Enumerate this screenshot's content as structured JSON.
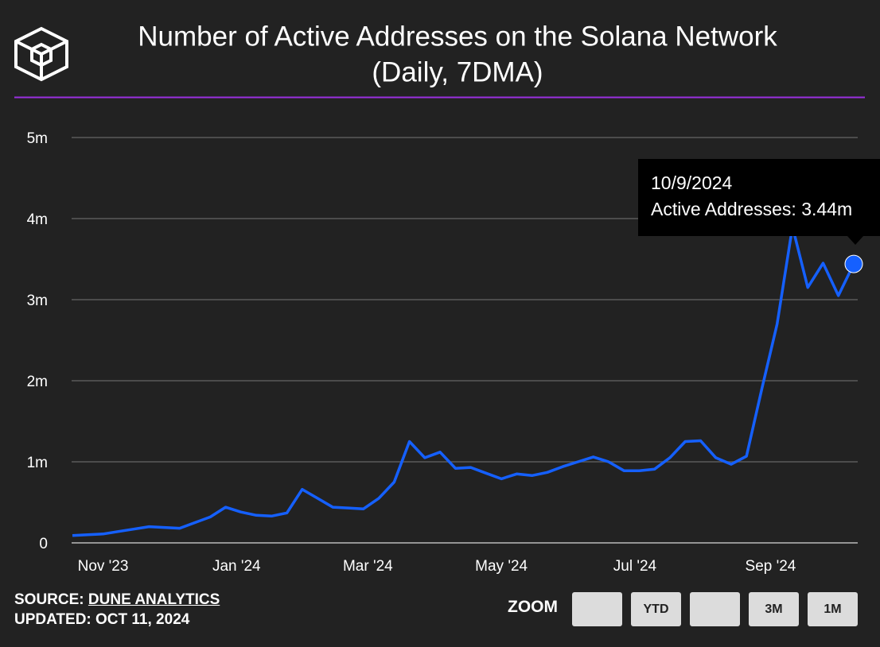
{
  "chart_data": {
    "type": "line",
    "title": "Number of Active Addresses on the Solana Network",
    "subtitle": "(Daily, 7DMA)",
    "x": [
      "2023-10-18",
      "2023-10-25",
      "2023-11-01",
      "2023-11-08",
      "2023-11-15",
      "2023-11-22",
      "2023-11-29",
      "2023-12-06",
      "2023-12-13",
      "2023-12-20",
      "2023-12-27",
      "2024-01-03",
      "2024-01-10",
      "2024-01-17",
      "2024-01-24",
      "2024-01-31",
      "2024-02-07",
      "2024-02-14",
      "2024-02-21",
      "2024-02-28",
      "2024-03-06",
      "2024-03-13",
      "2024-03-20",
      "2024-03-27",
      "2024-04-03",
      "2024-04-10",
      "2024-04-17",
      "2024-04-24",
      "2024-05-01",
      "2024-05-08",
      "2024-05-15",
      "2024-05-22",
      "2024-05-29",
      "2024-06-05",
      "2024-06-12",
      "2024-06-19",
      "2024-06-26",
      "2024-07-03",
      "2024-07-10",
      "2024-07-17",
      "2024-07-24",
      "2024-07-31",
      "2024-08-07",
      "2024-08-14",
      "2024-08-21",
      "2024-08-28",
      "2024-09-04",
      "2024-09-11",
      "2024-09-18",
      "2024-09-25",
      "2024-10-02",
      "2024-10-09"
    ],
    "values": [
      0.09,
      0.1,
      0.11,
      0.14,
      0.17,
      0.2,
      0.19,
      0.18,
      0.25,
      0.32,
      0.44,
      0.38,
      0.34,
      0.33,
      0.37,
      0.66,
      0.55,
      0.44,
      0.43,
      0.42,
      0.55,
      0.75,
      1.25,
      1.05,
      1.12,
      0.92,
      0.93,
      0.86,
      0.79,
      0.85,
      0.83,
      0.87,
      0.94,
      1.0,
      1.06,
      1.0,
      0.89,
      0.89,
      0.91,
      1.05,
      1.25,
      1.26,
      1.05,
      0.97,
      1.07,
      1.9,
      2.7,
      3.9,
      3.15,
      3.45,
      3.05,
      3.44
    ],
    "color": "#1560ff",
    "xlim": [
      "2023-10-18",
      "2024-10-09"
    ],
    "xticks": [
      {
        "value": "2023-11-01",
        "label": "Nov '23"
      },
      {
        "value": "2024-01-01",
        "label": "Jan '24"
      },
      {
        "value": "2024-03-01",
        "label": "Mar '24"
      },
      {
        "value": "2024-05-01",
        "label": "May '24"
      },
      {
        "value": "2024-07-01",
        "label": "Jul '24"
      },
      {
        "value": "2024-09-01",
        "label": "Sep '24"
      }
    ],
    "ylim": [
      0,
      5
    ],
    "yticks": [
      0,
      {
        "value": 1,
        "label": "1m"
      },
      {
        "value": 2,
        "label": "2m"
      },
      {
        "value": 3,
        "label": "3m"
      },
      {
        "value": 4,
        "label": "4m"
      },
      {
        "value": 5,
        "label": "5m"
      }
    ],
    "grid": true,
    "tooltip": {
      "date": "10/9/2024",
      "label": "Active Addresses: 3.44m"
    }
  },
  "footer": {
    "source_label": "SOURCE:",
    "source": "DUNE ANALYTICS",
    "updated": "UPDATED: OCT 11, 2024",
    "zoom": "ZOOM",
    "zoom_buttons": [
      "YTD",
      "3M",
      "1M"
    ]
  }
}
